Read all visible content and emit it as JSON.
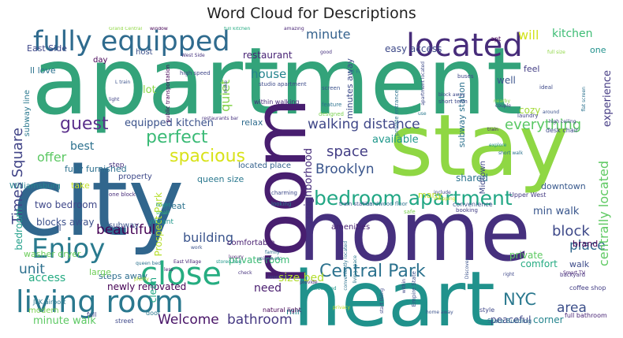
{
  "title": "Word Cloud for Descriptions",
  "words": [
    {
      "text": "apartment",
      "color": "#33a37a"
    },
    {
      "text": "city",
      "color": "#31668d"
    },
    {
      "text": "stay",
      "color": "#8fd744"
    },
    {
      "text": "home",
      "color": "#46307e"
    },
    {
      "text": "heart",
      "color": "#20928c"
    },
    {
      "text": "room",
      "color": "#481e6f"
    },
    {
      "text": "fully equipped",
      "color": "#2f6b8e"
    },
    {
      "text": "located",
      "color": "#472c7a"
    },
    {
      "text": "living room",
      "color": "#2a788e"
    },
    {
      "text": "Enjoy",
      "color": "#2a7a8e"
    },
    {
      "text": "close",
      "color": "#26ad81"
    },
    {
      "text": "bedroom apartment",
      "color": "#22a785"
    },
    {
      "text": "Central Park",
      "color": "#2c728e"
    },
    {
      "text": "walking distance",
      "color": "#3f4788"
    },
    {
      "text": "perfect",
      "color": "#3aba76"
    },
    {
      "text": "spacious",
      "color": "#d8e219"
    },
    {
      "text": "Times Square",
      "color": "#414487"
    },
    {
      "text": "guest",
      "color": "#5b308c"
    },
    {
      "text": "equipped kitchen",
      "color": "#3b528b"
    },
    {
      "text": "Brooklyn",
      "color": "#39558c"
    },
    {
      "text": "space",
      "color": "#433e85"
    },
    {
      "text": "everything",
      "color": "#5ac864"
    },
    {
      "text": "minute",
      "color": "#34618d"
    },
    {
      "text": "will",
      "color": "#d2e21b"
    },
    {
      "text": "kitchen",
      "color": "#3dbc74"
    },
    {
      "text": "house",
      "color": "#25848e"
    },
    {
      "text": "quiet",
      "color": "#84d44b"
    },
    {
      "text": "lot",
      "color": "#8bd646"
    },
    {
      "text": "best",
      "color": "#2d718e"
    },
    {
      "text": "offer",
      "color": "#5cc863"
    },
    {
      "text": "available",
      "color": "#1f988b"
    },
    {
      "text": "experience",
      "color": "#443a83"
    },
    {
      "text": "beautiful",
      "color": "#440154"
    },
    {
      "text": "building",
      "color": "#3a548c"
    },
    {
      "text": "block",
      "color": "#3e4989"
    },
    {
      "text": "place",
      "color": "#31688e"
    },
    {
      "text": "min walk",
      "color": "#39568c"
    },
    {
      "text": "unit",
      "color": "#2d708e"
    },
    {
      "text": "size bed",
      "color": "#b2dd2d"
    },
    {
      "text": "access",
      "color": "#25ab82"
    },
    {
      "text": "NYC",
      "color": "#2a788e"
    },
    {
      "text": "area",
      "color": "#3c4f8a"
    },
    {
      "text": "need",
      "color": "#481c6e"
    },
    {
      "text": "Welcome",
      "color": "#481467"
    },
    {
      "text": "bathroom",
      "color": "#453882"
    },
    {
      "text": "minute walk",
      "color": "#5dc963"
    },
    {
      "text": "centrally located",
      "color": "#5ec962"
    },
    {
      "text": "neighborhood",
      "color": "#472d7b"
    },
    {
      "text": "newly renovated",
      "color": "#440154"
    },
    {
      "text": "private room",
      "color": "#3bbb75"
    },
    {
      "text": "comfort",
      "color": "#25ab82"
    },
    {
      "text": "two bedroom",
      "color": "#3f4889"
    },
    {
      "text": "blocks away",
      "color": "#3c508b"
    },
    {
      "text": "washer dryer",
      "color": "#6ccd5a"
    },
    {
      "text": "bedroom",
      "color": "#1f9e89"
    },
    {
      "text": "shared",
      "color": "#2c738e"
    },
    {
      "text": "steps away",
      "color": "#2e6e8e"
    },
    {
      "text": "fully furnished",
      "color": "#2d708e"
    },
    {
      "text": "subway",
      "color": "#3b528b"
    },
    {
      "text": "restaurant",
      "color": "#482475"
    },
    {
      "text": "easy access",
      "color": "#3e4a89"
    },
    {
      "text": "East Side",
      "color": "#3f4889"
    },
    {
      "text": "cozy",
      "color": "#a2da37"
    },
    {
      "text": "well",
      "color": "#3a538b"
    },
    {
      "text": "feel",
      "color": "#433e85"
    },
    {
      "text": "one",
      "color": "#21918c"
    },
    {
      "text": "private",
      "color": "#5ec962"
    },
    {
      "text": "walk",
      "color": "#3e4c8a"
    },
    {
      "text": "brand",
      "color": "#440154"
    },
    {
      "text": "corner",
      "color": "#25858e"
    },
    {
      "text": "peaceful",
      "color": "#3f4788"
    },
    {
      "text": "downtown",
      "color": "#38598c"
    },
    {
      "text": "relax",
      "color": "#2f6c8e"
    },
    {
      "text": "large",
      "color": "#6ece58"
    },
    {
      "text": "comfortable",
      "color": "#481f70"
    },
    {
      "text": "modern",
      "color": "#7ad151"
    },
    {
      "text": "min",
      "color": "#25848e"
    },
    {
      "text": "Prospect Park",
      "color": "#b5de2b"
    },
    {
      "text": "queen size",
      "color": "#2a788e"
    },
    {
      "text": "great",
      "color": "#2c728e"
    },
    {
      "text": "take",
      "color": "#c2df23"
    },
    {
      "text": "subway station",
      "color": "#2d718e"
    },
    {
      "text": "minutes away",
      "color": "#3e4c8a"
    },
    {
      "text": "located place",
      "color": "#34618d"
    },
    {
      "text": "property",
      "color": "#3e4989"
    },
    {
      "text": "step",
      "color": "#46327e"
    },
    {
      "text": "amenities",
      "color": "#482173"
    },
    {
      "text": "Midtown",
      "color": "#3f4788"
    },
    {
      "text": "many",
      "color": "#c0df25"
    },
    {
      "text": "day",
      "color": "#440154"
    },
    {
      "text": "host",
      "color": "#3b518b"
    },
    {
      "text": "ll love",
      "color": "#2c728e"
    },
    {
      "text": "subway line",
      "color": "#2a788e"
    },
    {
      "text": "Williamsburg",
      "color": "#25848e"
    },
    {
      "text": "one block",
      "color": "#472c7a"
    },
    {
      "text": "ll",
      "color": "#3b528b"
    },
    {
      "text": "clean",
      "color": "#22a785"
    },
    {
      "text": "vibrant",
      "color": "#1f988b"
    },
    {
      "text": "JFK airport",
      "color": "#2a788e"
    },
    {
      "text": "full",
      "color": "#414487"
    },
    {
      "text": "door",
      "color": "#2a788e"
    },
    {
      "text": "street",
      "color": "#3f4889"
    },
    {
      "text": "natural light",
      "color": "#440154"
    },
    {
      "text": "style",
      "color": "#3f4889"
    },
    {
      "text": "State Building",
      "color": "#2d708e"
    },
    {
      "text": "full bathroom",
      "color": "#482475"
    },
    {
      "text": "coffee shop",
      "color": "#433e85"
    },
    {
      "text": "backyard",
      "color": "#46327e"
    },
    {
      "text": "Upper West",
      "color": "#443a83"
    },
    {
      "text": "desk chair",
      "color": "#3e4989"
    },
    {
      "text": "train station",
      "color": "#3b528b"
    },
    {
      "text": "hardwood floor",
      "color": "#2c728e"
    },
    {
      "text": "convenience",
      "color": "#3a548c"
    },
    {
      "text": "booking",
      "color": "#433e85"
    },
    {
      "text": "high speed",
      "color": "#3f4788"
    },
    {
      "text": "public transportation",
      "color": "#440154"
    },
    {
      "text": "studio apartment",
      "color": "#3e4c8a"
    },
    {
      "text": "within walking",
      "color": "#472c7a"
    },
    {
      "text": "screen",
      "color": "#3b528b"
    },
    {
      "text": "feature",
      "color": "#2c728e"
    },
    {
      "text": "designed",
      "color": "#7ad151"
    },
    {
      "text": "laundry",
      "color": "#414487"
    },
    {
      "text": "short term",
      "color": "#3e4a89"
    },
    {
      "text": "buses",
      "color": "#3f4788"
    },
    {
      "text": "Wi Fi",
      "color": "#2a788e"
    },
    {
      "text": "Grand Central",
      "color": "#8fd744"
    },
    {
      "text": "window",
      "color": "#440154"
    },
    {
      "text": "amazing",
      "color": "#482475"
    },
    {
      "text": "full kitchen",
      "color": "#25ab82"
    },
    {
      "text": "West Side",
      "color": "#46327e"
    },
    {
      "text": "Empire State",
      "color": "#3b528b"
    },
    {
      "text": "private entrance",
      "color": "#2c728e"
    },
    {
      "text": "living space",
      "color": "#2a788e"
    },
    {
      "text": "restaurants bar",
      "color": "#46327e"
    },
    {
      "text": "luxury",
      "color": "#481c6e"
    },
    {
      "text": "family",
      "color": "#2d708e"
    },
    {
      "text": "check",
      "color": "#46327e"
    },
    {
      "text": "tree lined",
      "color": "#1f988b"
    },
    {
      "text": "privacy",
      "color": "#c2df23"
    },
    {
      "text": "home away",
      "color": "#3b528b"
    },
    {
      "text": "start living",
      "color": "#3f4889"
    },
    {
      "text": "East Village",
      "color": "#482475"
    },
    {
      "text": "queen bed",
      "color": "#2c728e"
    },
    {
      "text": "less",
      "color": "#481c6e"
    },
    {
      "text": "plenty",
      "color": "#b5de2b"
    },
    {
      "text": "bright",
      "color": "#1f988b"
    },
    {
      "text": "small",
      "color": "#35b779"
    },
    {
      "text": "work",
      "color": "#3b528b"
    },
    {
      "text": "charming",
      "color": "#3e4a89"
    },
    {
      "text": "looking",
      "color": "#2a788e"
    },
    {
      "text": "safe",
      "color": "#7ad151"
    },
    {
      "text": "include",
      "color": "#3f4788"
    },
    {
      "text": "shopping",
      "color": "#c2df23"
    },
    {
      "text": "explore",
      "color": "#21918c"
    },
    {
      "text": "short walk",
      "color": "#2c728e"
    },
    {
      "text": "ideal",
      "color": "#3e4989"
    },
    {
      "text": "couple",
      "color": "#3f4788"
    },
    {
      "text": "nearby",
      "color": "#8fd744"
    },
    {
      "text": "around",
      "color": "#3b528b"
    },
    {
      "text": "high ceiling",
      "color": "#414487"
    },
    {
      "text": "flat screen",
      "color": "#2c728e"
    },
    {
      "text": "Smart TV",
      "color": "#482475"
    },
    {
      "text": "right",
      "color": "#3f4889"
    },
    {
      "text": "unique",
      "color": "#3b528b"
    },
    {
      "text": "etc",
      "color": "#2a788e"
    },
    {
      "text": "provide",
      "color": "#472c7a"
    },
    {
      "text": "Discover",
      "color": "#3b528b"
    },
    {
      "text": "within",
      "color": "#3f4788"
    },
    {
      "text": "apt",
      "color": "#440154"
    },
    {
      "text": "good",
      "color": "#46327e"
    },
    {
      "text": "full size",
      "color": "#8fd744"
    },
    {
      "text": "make",
      "color": "#3b528b"
    },
    {
      "text": "light",
      "color": "#414487"
    },
    {
      "text": "use",
      "color": "#2a788e"
    },
    {
      "text": "block away",
      "color": "#3e4989"
    },
    {
      "text": "train",
      "color": "#482475"
    },
    {
      "text": "L train",
      "color": "#3b528b"
    },
    {
      "text": "stored bag",
      "color": "#1f988b"
    },
    {
      "text": "conveniently located",
      "color": "#2c728e"
    },
    {
      "text": "apartment located",
      "color": "#3e4a89"
    },
    {
      "text": "upper east",
      "color": "#3f4788"
    }
  ]
}
